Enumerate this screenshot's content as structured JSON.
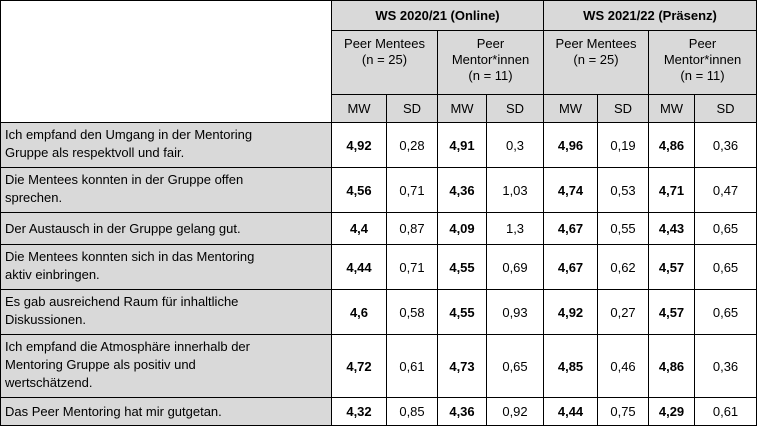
{
  "periods": [
    {
      "label": "WS 2020/21 (Online)"
    },
    {
      "label": "WS 2021/22 (Präsenz)"
    }
  ],
  "groups": [
    {
      "line1": "Peer Mentees",
      "line2": "(n = 25)"
    },
    {
      "line1": "Peer",
      "line2": "Mentor*innen",
      "line3": "(n = 11)"
    }
  ],
  "stats": {
    "mw": "MW",
    "sd": "SD"
  },
  "rows": [
    {
      "q1": "Ich empfand den Umgang in der Mentoring",
      "q2": "Gruppe als respektvoll und fair.",
      "q3": "",
      "v": [
        "4,92",
        "0,28",
        "4,91",
        "0,3",
        "4,96",
        "0,19",
        "4,86",
        "0,36"
      ]
    },
    {
      "q1": "Die Mentees konnten in der Gruppe offen",
      "q2": "sprechen.",
      "q3": "",
      "v": [
        "4,56",
        "0,71",
        "4,36",
        "1,03",
        "4,74",
        "0,53",
        "4,71",
        "0,47"
      ]
    },
    {
      "q1": "Der Austausch in der Gruppe gelang gut.",
      "q2": "",
      "q3": "",
      "v": [
        "4,4",
        "0,87",
        "4,09",
        "1,3",
        "4,67",
        "0,55",
        "4,43",
        "0,65"
      ]
    },
    {
      "q1": "Die Mentees konnten sich in das Mentoring",
      "q2": "aktiv einbringen.",
      "q3": "",
      "v": [
        "4,44",
        "0,71",
        "4,55",
        "0,69",
        "4,67",
        "0,62",
        "4,57",
        "0,65"
      ]
    },
    {
      "q1": "Es gab ausreichend Raum für inhaltliche",
      "q2": "Diskussionen.",
      "q3": "",
      "v": [
        "4,6",
        "0,58",
        "4,55",
        "0,93",
        "4,92",
        "0,27",
        "4,57",
        "0,65"
      ]
    },
    {
      "q1": "Ich empfand die Atmosphäre innerhalb der",
      "q2": "Mentoring Gruppe als positiv und",
      "q3": "wertschätzend.",
      "v": [
        "4,72",
        "0,61",
        "4,73",
        "0,65",
        "4,85",
        "0,46",
        "4,86",
        "0,36"
      ]
    },
    {
      "q1": "Das Peer Mentoring hat mir gutgetan.",
      "q2": "",
      "q3": "",
      "v": [
        "4,32",
        "0,85",
        "4,36",
        "0,92",
        "4,44",
        "0,75",
        "4,29",
        "0,61"
      ]
    }
  ]
}
